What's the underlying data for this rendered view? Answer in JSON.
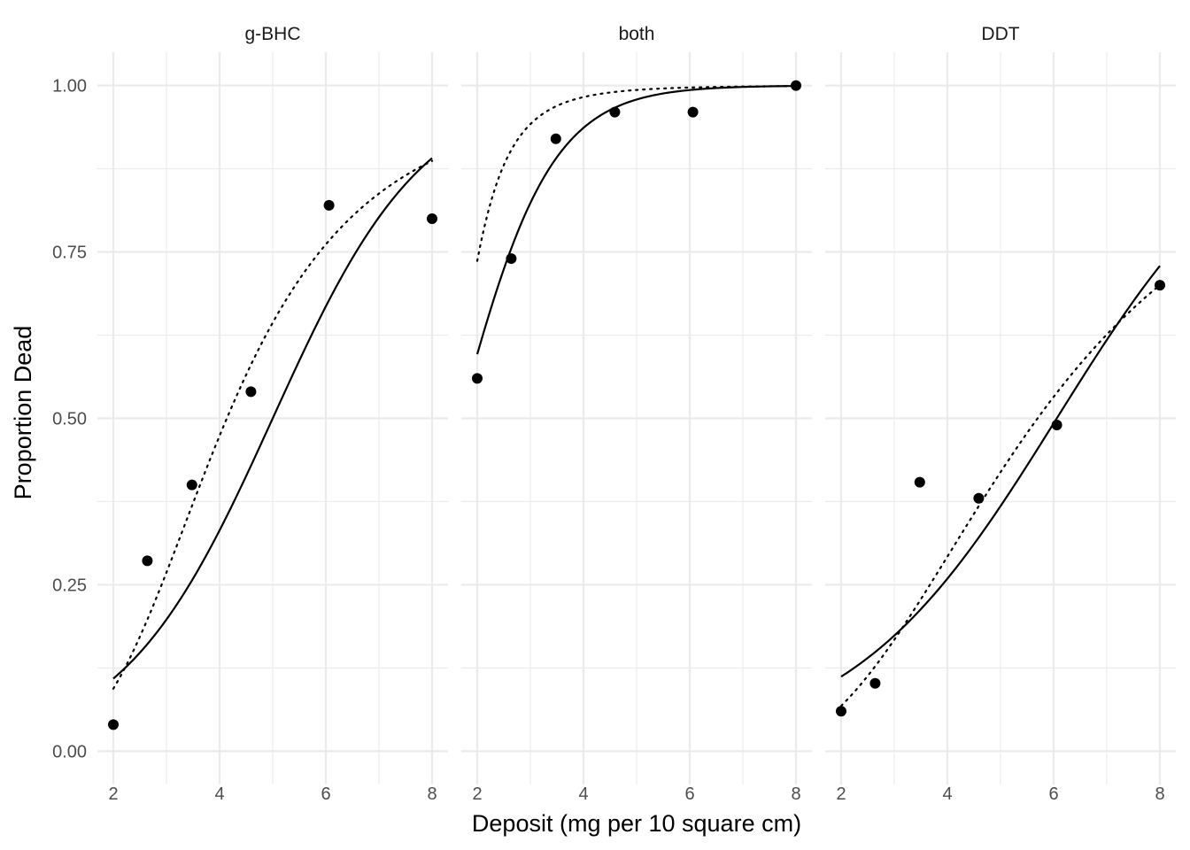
{
  "chart_data": {
    "type": "scatter",
    "facet_labels": [
      "g-BHC",
      "both",
      "DDT"
    ],
    "xlabel": "Deposit (mg per 10 square cm)",
    "ylabel": "Proportion Dead",
    "xlim": [
      1.7,
      8.3
    ],
    "ylim": [
      -0.05,
      1.05
    ],
    "x_ticks": [
      2,
      4,
      6,
      8
    ],
    "x_tick_labels": [
      "2",
      "4",
      "6",
      "8"
    ],
    "y_ticks": [
      0,
      0.25,
      0.5,
      0.75,
      1
    ],
    "y_tick_labels": [
      "0.00",
      "0.25",
      "0.50",
      "0.75",
      "1.00"
    ],
    "grid": true,
    "colors": {
      "points": "#000000",
      "lines": "#000000",
      "grid": "#ebebeb",
      "text": "#4d4d4d"
    },
    "facets": [
      {
        "label": "g-BHC",
        "points": {
          "x": [
            2.0,
            2.64,
            3.48,
            4.59,
            6.06,
            8.0
          ],
          "y": [
            0.04,
            0.286,
            0.4,
            0.54,
            0.82,
            0.8
          ]
        },
        "fit_solid": {
          "intercept": -3.5,
          "slope": 0.7
        },
        "fit_dotted": {
          "intercept": -4.43,
          "slope": 3.12
        }
      },
      {
        "label": "both",
        "points": {
          "x": [
            2.0,
            2.64,
            3.48,
            4.59,
            6.06,
            8.0
          ],
          "y": [
            0.56,
            0.74,
            0.92,
            0.96,
            0.96,
            1.0
          ]
        },
        "fit_solid": {
          "intercept": -1.91,
          "slope": 1.15
        },
        "fit_dotted": {
          "intercept": -1.98,
          "slope": 4.34
        }
      },
      {
        "label": "DDT",
        "points": {
          "x": [
            2.0,
            2.64,
            3.48,
            4.59,
            6.06,
            8.0
          ],
          "y": [
            0.06,
            0.102,
            0.404,
            0.38,
            0.49,
            0.7
          ]
        },
        "fit_solid": {
          "intercept": -3.09,
          "slope": 0.51
        },
        "fit_dotted": {
          "intercept": -4.35,
          "slope": 2.5
        }
      }
    ]
  }
}
